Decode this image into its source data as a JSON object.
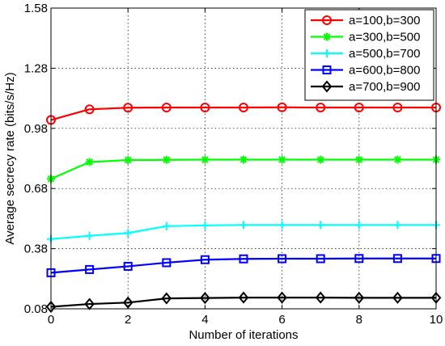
{
  "chart_data": {
    "type": "line",
    "title": "",
    "xlabel": "Number of iterations",
    "ylabel": "Average secrecy rate (bits/s/Hz)",
    "xlim": [
      0,
      10
    ],
    "ylim": [
      0.08,
      1.58
    ],
    "xticks": [
      0,
      2,
      4,
      6,
      8,
      10
    ],
    "yticks": [
      0.08,
      0.38,
      0.68,
      0.98,
      1.28,
      1.58
    ],
    "xtick_labels": [
      "0",
      "2",
      "4",
      "6",
      "8",
      "10"
    ],
    "ytick_labels": [
      "0.08",
      "0.38",
      "0.68",
      "0.98",
      "1.28",
      "1.58"
    ],
    "grid": true,
    "grid_style": "dotted",
    "legend_position": "top-right",
    "x": [
      0,
      1,
      2,
      3,
      4,
      5,
      6,
      7,
      8,
      9,
      10
    ],
    "series": [
      {
        "name": "a=100,b=300",
        "color": "#ff0000",
        "marker": "circle",
        "values": [
          1.022,
          1.075,
          1.083,
          1.084,
          1.084,
          1.084,
          1.085,
          1.084,
          1.084,
          1.084,
          1.084
        ]
      },
      {
        "name": "a=300,b=500",
        "color": "#00ff00",
        "marker": "asterisk",
        "values": [
          0.728,
          0.812,
          0.822,
          0.823,
          0.824,
          0.824,
          0.824,
          0.824,
          0.824,
          0.824,
          0.824
        ]
      },
      {
        "name": "a=500,b=700",
        "color": "#00ffff",
        "marker": "plus",
        "values": [
          0.428,
          0.444,
          0.458,
          0.492,
          0.496,
          0.498,
          0.498,
          0.498,
          0.498,
          0.498,
          0.498
        ]
      },
      {
        "name": "a=600,b=800",
        "color": "#0000ff",
        "marker": "square",
        "values": [
          0.26,
          0.276,
          0.292,
          0.31,
          0.325,
          0.329,
          0.33,
          0.33,
          0.331,
          0.331,
          0.331
        ]
      },
      {
        "name": "a=700,b=900",
        "color": "#000000",
        "marker": "diamond",
        "values": [
          0.09,
          0.104,
          0.111,
          0.132,
          0.134,
          0.136,
          0.136,
          0.136,
          0.135,
          0.135,
          0.135
        ]
      }
    ]
  }
}
